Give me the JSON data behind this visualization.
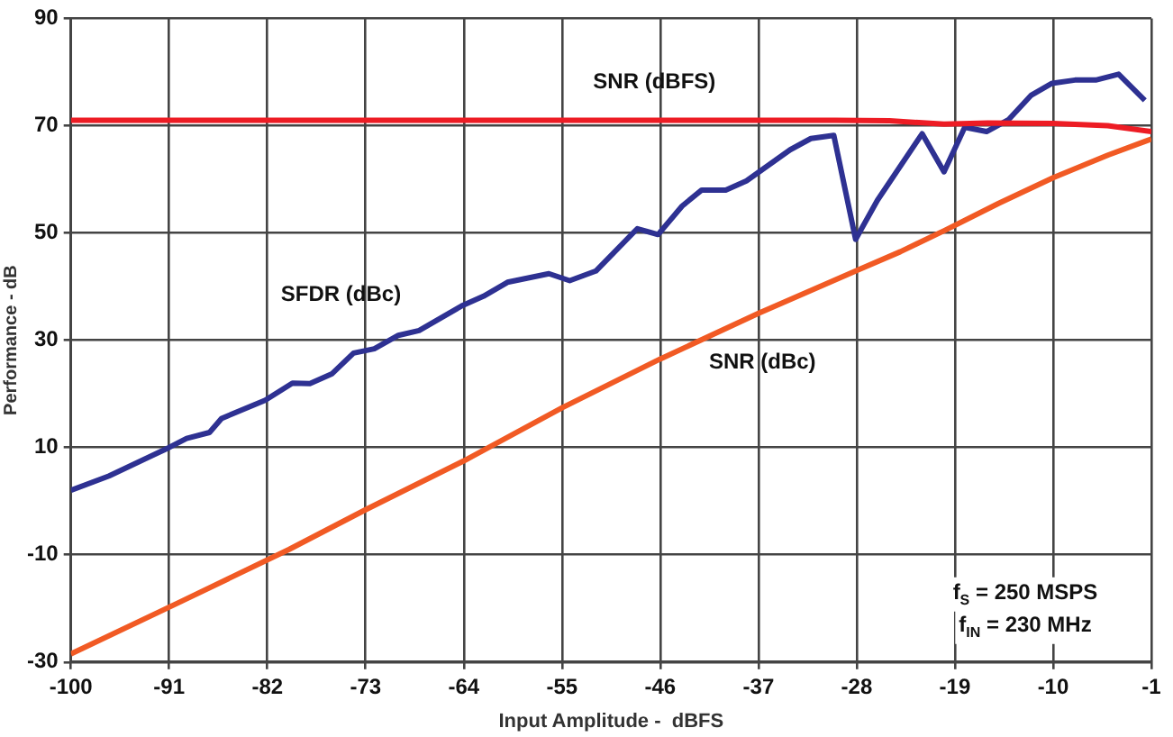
{
  "chart_data": {
    "type": "line",
    "xlabel": "Input Amplitude -  dBFS",
    "ylabel": "Performance - dB",
    "xlim": [
      -100,
      -1
    ],
    "xticks": [
      -100,
      -91,
      -82,
      -73,
      -64,
      -55,
      -46,
      -37,
      -28,
      -19,
      -10,
      -1
    ],
    "ylim": [
      -30,
      90
    ],
    "yticks": [
      -30,
      -10,
      10,
      30,
      50,
      70,
      90
    ],
    "grid": true,
    "legend": false,
    "marker": "none",
    "line_style": "solid",
    "series": [
      {
        "name": "SNR (dBFS)",
        "color": "#ed1c24",
        "x": [
          -100,
          -90,
          -80,
          -70,
          -60,
          -50,
          -40,
          -30,
          -25,
          -20,
          -16,
          -10,
          -5,
          -1
        ],
        "values": [
          71,
          71,
          71,
          71,
          71,
          71,
          71,
          71,
          70.9,
          70.3,
          70.5,
          70.4,
          70,
          68.9
        ]
      },
      {
        "name": "SFDR (dBc)",
        "color": "#2e3192",
        "x": [
          -100,
          -96.5,
          -91,
          -89.4,
          -87.3,
          -86.2,
          -82.2,
          -79.7,
          -78.1,
          -76.1,
          -74.1,
          -72.2,
          -70,
          -68.1,
          -64.1,
          -62.2,
          -60,
          -56.2,
          -54.3,
          -51.9,
          -48.1,
          -46.2,
          -44,
          -42.2,
          -40,
          -38.1,
          -34.1,
          -32.2,
          -30.1,
          -28.1,
          -26.1,
          -22,
          -20,
          -18.1,
          -16.1,
          -14.1,
          -12,
          -10.1,
          -8,
          -6.1,
          -4,
          -1.6
        ],
        "values": [
          2,
          4.7,
          10,
          11.7,
          12.8,
          15.4,
          18.8,
          22,
          21.9,
          23.7,
          27.6,
          28.4,
          30.9,
          31.8,
          36.5,
          38.2,
          40.8,
          42.4,
          41.1,
          42.9,
          50.8,
          49.7,
          55,
          58,
          58,
          59.7,
          65.5,
          67.6,
          68.2,
          48.8,
          56.1,
          68.5,
          61.4,
          69.7,
          68.9,
          71.1,
          75.7,
          77.9,
          78.5,
          78.5,
          79.6,
          74.7
        ]
      },
      {
        "name": "SNR (dBc)",
        "color": "#f15a24",
        "x": [
          -100,
          -90,
          -80,
          -73,
          -64,
          -55,
          -46,
          -37,
          -28,
          -24,
          -20,
          -15,
          -10,
          -5,
          -1
        ],
        "values": [
          -28.5,
          -18.8,
          -9,
          -1.6,
          7.5,
          17.4,
          26.5,
          35,
          43,
          46.5,
          50.4,
          55.5,
          60.3,
          64.5,
          67.5
        ]
      }
    ],
    "annotations": [
      "f$_{S}$ = 250 MSPS",
      "f$_{IN}$ = 230 MHz"
    ]
  }
}
